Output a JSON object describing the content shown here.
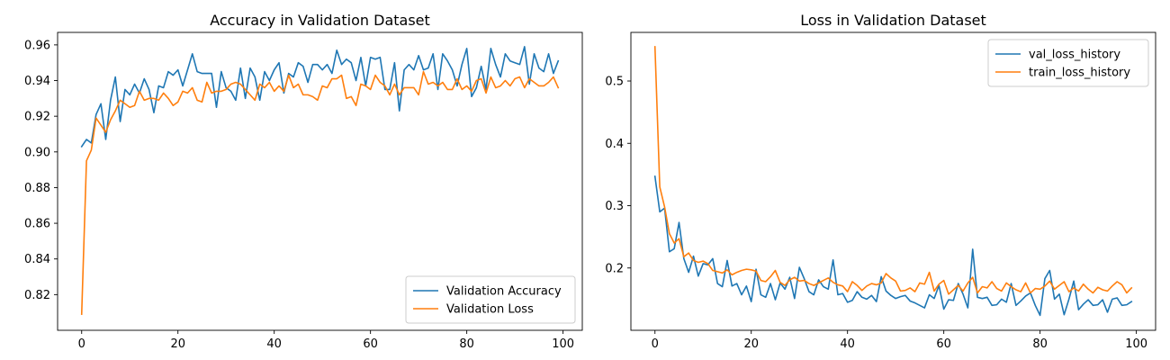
{
  "chart_data": [
    {
      "type": "line",
      "title": "Accuracy in Validation Dataset",
      "xlabel": "",
      "ylabel": "",
      "xlim": [
        -5,
        104
      ],
      "ylim": [
        0.8,
        0.967
      ],
      "xticks": [
        "0",
        "20",
        "40",
        "60",
        "80",
        "100"
      ],
      "xtick_values": [
        0,
        20,
        40,
        60,
        80,
        100
      ],
      "yticks": [
        "0.82",
        "0.84",
        "0.86",
        "0.88",
        "0.90",
        "0.92",
        "0.94",
        "0.96"
      ],
      "ytick_values": [
        0.82,
        0.84,
        0.86,
        0.88,
        0.9,
        0.92,
        0.94,
        0.96
      ],
      "legend_position": "lower-right",
      "grid": false,
      "series": [
        {
          "name": "Validation Accuracy",
          "color": "#1f77b4",
          "values": [
            0.903,
            0.907,
            0.905,
            0.921,
            0.927,
            0.907,
            0.929,
            0.942,
            0.917,
            0.935,
            0.932,
            0.938,
            0.933,
            0.941,
            0.935,
            0.922,
            0.937,
            0.936,
            0.945,
            0.943,
            0.946,
            0.937,
            0.946,
            0.955,
            0.945,
            0.944,
            0.944,
            0.944,
            0.925,
            0.945,
            0.936,
            0.934,
            0.929,
            0.947,
            0.93,
            0.947,
            0.942,
            0.929,
            0.945,
            0.94,
            0.946,
            0.95,
            0.933,
            0.944,
            0.942,
            0.95,
            0.948,
            0.939,
            0.949,
            0.949,
            0.946,
            0.949,
            0.944,
            0.957,
            0.949,
            0.952,
            0.95,
            0.94,
            0.953,
            0.937,
            0.953,
            0.952,
            0.953,
            0.935,
            0.935,
            0.95,
            0.923,
            0.946,
            0.949,
            0.946,
            0.954,
            0.946,
            0.947,
            0.955,
            0.935,
            0.955,
            0.951,
            0.946,
            0.937,
            0.949,
            0.958,
            0.931,
            0.936,
            0.948,
            0.935,
            0.958,
            0.949,
            0.942,
            0.955,
            0.951,
            0.95,
            0.949,
            0.959,
            0.938,
            0.955,
            0.947,
            0.945,
            0.955,
            0.944,
            0.951
          ]
        },
        {
          "name": "Validation Loss",
          "color": "#ff7f0e",
          "values": [
            0.809,
            0.895,
            0.901,
            0.919,
            0.915,
            0.911,
            0.918,
            0.923,
            0.929,
            0.927,
            0.925,
            0.926,
            0.934,
            0.929,
            0.93,
            0.93,
            0.929,
            0.933,
            0.93,
            0.926,
            0.928,
            0.934,
            0.933,
            0.936,
            0.929,
            0.928,
            0.939,
            0.933,
            0.934,
            0.934,
            0.935,
            0.938,
            0.939,
            0.938,
            0.935,
            0.932,
            0.929,
            0.938,
            0.936,
            0.939,
            0.934,
            0.937,
            0.934,
            0.943,
            0.936,
            0.938,
            0.932,
            0.932,
            0.931,
            0.929,
            0.937,
            0.936,
            0.941,
            0.941,
            0.943,
            0.93,
            0.931,
            0.926,
            0.938,
            0.937,
            0.935,
            0.943,
            0.939,
            0.937,
            0.932,
            0.938,
            0.932,
            0.936,
            0.936,
            0.936,
            0.932,
            0.945,
            0.938,
            0.939,
            0.937,
            0.939,
            0.935,
            0.935,
            0.941,
            0.935,
            0.937,
            0.934,
            0.94,
            0.941,
            0.933,
            0.942,
            0.936,
            0.937,
            0.94,
            0.937,
            0.941,
            0.942,
            0.936,
            0.941,
            0.939,
            0.937,
            0.937,
            0.939,
            0.942,
            0.936
          ]
        }
      ]
    },
    {
      "type": "line",
      "title": "Loss in Validation Dataset",
      "xlabel": "",
      "ylabel": "",
      "xlim": [
        -5,
        104
      ],
      "ylim": [
        0.1,
        0.578
      ],
      "xticks": [
        "0",
        "20",
        "40",
        "60",
        "80",
        "100"
      ],
      "xtick_values": [
        0,
        20,
        40,
        60,
        80,
        100
      ],
      "yticks": [
        "0.2",
        "0.3",
        "0.4",
        "0.5"
      ],
      "ytick_values": [
        0.2,
        0.3,
        0.4,
        0.5
      ],
      "legend_position": "upper-right",
      "grid": false,
      "series": [
        {
          "name": "val_loss_history",
          "color": "#1f77b4",
          "values": [
            0.347,
            0.29,
            0.296,
            0.226,
            0.231,
            0.273,
            0.215,
            0.193,
            0.219,
            0.187,
            0.207,
            0.205,
            0.215,
            0.175,
            0.17,
            0.212,
            0.171,
            0.175,
            0.157,
            0.171,
            0.146,
            0.198,
            0.157,
            0.153,
            0.175,
            0.149,
            0.176,
            0.166,
            0.185,
            0.151,
            0.201,
            0.183,
            0.162,
            0.157,
            0.181,
            0.17,
            0.166,
            0.213,
            0.157,
            0.159,
            0.145,
            0.148,
            0.162,
            0.153,
            0.15,
            0.156,
            0.146,
            0.186,
            0.163,
            0.156,
            0.151,
            0.154,
            0.156,
            0.147,
            0.144,
            0.14,
            0.136,
            0.157,
            0.151,
            0.172,
            0.134,
            0.149,
            0.148,
            0.175,
            0.158,
            0.136,
            0.23,
            0.153,
            0.151,
            0.153,
            0.14,
            0.141,
            0.15,
            0.145,
            0.175,
            0.14,
            0.147,
            0.155,
            0.16,
            0.14,
            0.124,
            0.183,
            0.196,
            0.15,
            0.158,
            0.125,
            0.15,
            0.179,
            0.133,
            0.142,
            0.149,
            0.14,
            0.141,
            0.149,
            0.129,
            0.15,
            0.152,
            0.14,
            0.141,
            0.146
          ]
        },
        {
          "name": "train_loss_history",
          "color": "#ff7f0e",
          "values": [
            0.555,
            0.33,
            0.298,
            0.255,
            0.24,
            0.247,
            0.218,
            0.224,
            0.212,
            0.209,
            0.211,
            0.207,
            0.196,
            0.194,
            0.192,
            0.197,
            0.189,
            0.193,
            0.196,
            0.198,
            0.197,
            0.195,
            0.18,
            0.178,
            0.186,
            0.196,
            0.177,
            0.172,
            0.181,
            0.185,
            0.179,
            0.18,
            0.175,
            0.172,
            0.176,
            0.18,
            0.184,
            0.177,
            0.173,
            0.171,
            0.162,
            0.178,
            0.172,
            0.164,
            0.171,
            0.175,
            0.173,
            0.176,
            0.191,
            0.184,
            0.179,
            0.163,
            0.164,
            0.168,
            0.162,
            0.176,
            0.174,
            0.193,
            0.163,
            0.174,
            0.18,
            0.158,
            0.165,
            0.172,
            0.163,
            0.176,
            0.185,
            0.16,
            0.17,
            0.168,
            0.178,
            0.167,
            0.163,
            0.176,
            0.17,
            0.165,
            0.162,
            0.176,
            0.16,
            0.167,
            0.166,
            0.171,
            0.179,
            0.166,
            0.172,
            0.178,
            0.162,
            0.168,
            0.163,
            0.174,
            0.166,
            0.16,
            0.169,
            0.165,
            0.163,
            0.171,
            0.178,
            0.173,
            0.16,
            0.168
          ]
        }
      ]
    }
  ]
}
